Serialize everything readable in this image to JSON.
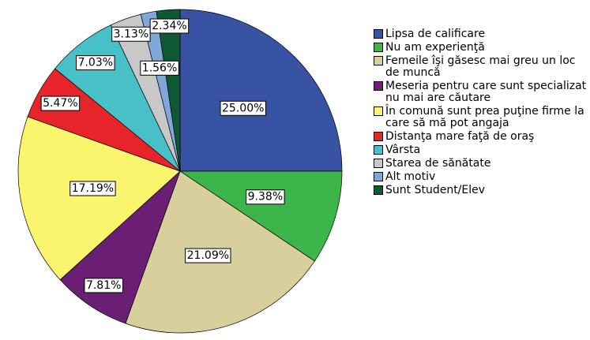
{
  "chart_data": {
    "type": "pie",
    "categories": [
      "Lipsa de calificare",
      "Nu am experienţă",
      "Femeile îşi găsesc mai greu un loc de muncă",
      "Meseria pentru care sunt specializat nu mai are căutare",
      "În comună sunt prea puţine firme la care să mă pot angaja",
      "Distanţa mare faţă de oraş",
      "Vârsta",
      "Starea de sănătate",
      "Alt motiv",
      "Sunt Student/Elev"
    ],
    "values": [
      25.0,
      9.38,
      21.09,
      7.81,
      17.19,
      5.47,
      7.03,
      3.13,
      1.56,
      2.34
    ],
    "value_labels": [
      "25.00%",
      "9.38%",
      "21.09%",
      "7.81%",
      "17.19%",
      "5.47%",
      "7.03%",
      "3.13%",
      "1.56%",
      "2.34%"
    ],
    "colors": [
      "#3953a4",
      "#3cb54a",
      "#d9cf9c",
      "#6b1f74",
      "#fbf46d",
      "#e8242b",
      "#48c0c8",
      "#c8c8c8",
      "#7fa7da",
      "#0f5834"
    ],
    "legend": "right"
  }
}
